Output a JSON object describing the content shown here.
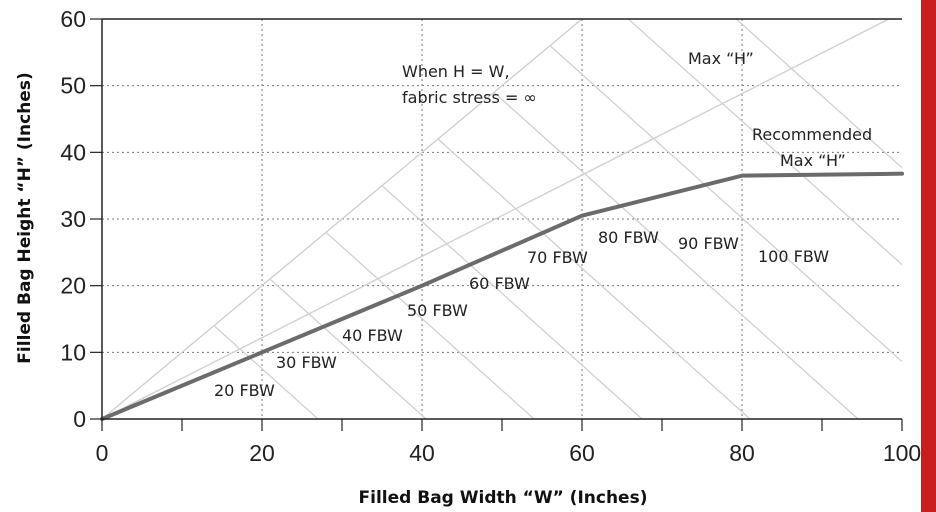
{
  "chart_data": {
    "type": "line",
    "xlabel": "Filled Bag Width “W” (Inches)",
    "ylabel": "Filled Bag Height “H” (Inches)",
    "xlim": [
      0,
      100
    ],
    "ylim": [
      0,
      60
    ],
    "x_ticks": [
      "0",
      "20",
      "40",
      "60",
      "80",
      "100"
    ],
    "y_ticks": [
      "0",
      "10",
      "20",
      "30",
      "40",
      "50",
      "60"
    ],
    "grid": true,
    "series": [
      {
        "name": "Recommended Max “H”",
        "points": [
          [
            0,
            0
          ],
          [
            20,
            10
          ],
          [
            40,
            20
          ],
          [
            60,
            30.5
          ],
          [
            80,
            36.5
          ],
          [
            100,
            36.8
          ]
        ]
      }
    ],
    "reference_lines": [
      {
        "name": "When H = W, fabric stress = ∞",
        "points": [
          [
            0,
            0
          ],
          [
            60,
            60
          ]
        ]
      },
      {
        "name": "Max “H”",
        "points": [
          [
            0,
            0
          ],
          [
            100,
            61
          ]
        ]
      }
    ],
    "fbw_values": [
      20,
      30,
      40,
      50,
      60,
      70,
      80,
      90,
      100
    ],
    "annotations": {
      "stress_line1": "When H = W,",
      "stress_line2": "fabric stress = ∞",
      "max_h": "Max “H”",
      "recommended_line1": "Recommended",
      "recommended_line2": "Max “H”",
      "fbw_labels": [
        "20 FBW",
        "30 FBW",
        "40 FBW",
        "50 FBW",
        "60 FBW",
        "70 FBW",
        "80 FBW",
        "90 FBW",
        "100 FBW"
      ]
    },
    "colors": {
      "main_line": "#6b6b6b",
      "guide_line": "#d0d0d0",
      "grid": "#777777",
      "accent_bar": "#c81e1e"
    }
  }
}
